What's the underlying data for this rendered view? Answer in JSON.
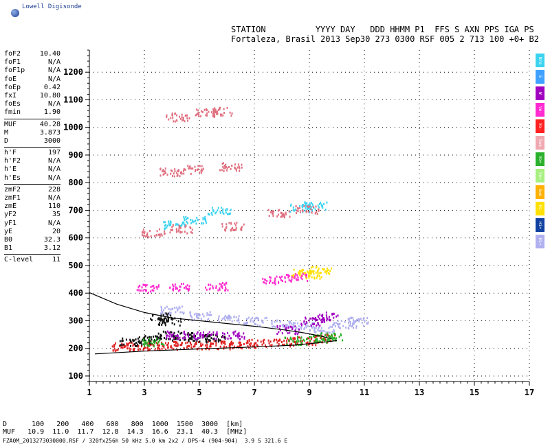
{
  "brand": "Lowell Digisonde",
  "header": {
    "line1": "STATION          YYYY DAY   DDD HHMM P1  FFS S AXN PPS IGA PS",
    "line2": "Fortaleza, Brasil 2013 Sep30 273 0300 RSF 005 2 713 100 +0+ B2"
  },
  "params": [
    {
      "label": "foF2",
      "value": "10.40"
    },
    {
      "label": "foF1",
      "value": "N/A"
    },
    {
      "label": "foF1p",
      "value": "N/A"
    },
    {
      "label": "foE",
      "value": "N/A"
    },
    {
      "label": "foEp",
      "value": "0.42"
    },
    {
      "label": "fxI",
      "value": "10.80"
    },
    {
      "label": "foEs",
      "value": "N/A"
    },
    {
      "label": "fmin",
      "value": "1.90"
    },
    {
      "sep": true
    },
    {
      "label": "MUF",
      "value": "40.28"
    },
    {
      "label": "M",
      "value": "3.873"
    },
    {
      "label": "D",
      "value": "3000"
    },
    {
      "sep": true
    },
    {
      "label": "h'F",
      "value": "197"
    },
    {
      "label": "h'F2",
      "value": "N/A"
    },
    {
      "label": "h'E",
      "value": "N/A"
    },
    {
      "label": "h'Es",
      "value": "N/A"
    },
    {
      "sep": true
    },
    {
      "label": "zmF2",
      "value": "228"
    },
    {
      "label": "zmF1",
      "value": "N/A"
    },
    {
      "label": "zmE",
      "value": "110"
    },
    {
      "label": "yF2",
      "value": "35"
    },
    {
      "label": "yF1",
      "value": "N/A"
    },
    {
      "label": "yE",
      "value": "20"
    },
    {
      "label": "B0",
      "value": "32.3"
    },
    {
      "label": "B1",
      "value": "3.12"
    },
    {
      "sep": true
    },
    {
      "label": "C-level",
      "value": "11"
    }
  ],
  "legend": [
    {
      "label": "Nro",
      "color": "#3bd3f0"
    },
    {
      "label": "E",
      "color": "#3fa0ff"
    },
    {
      "label": "W",
      "color": "#a000c0"
    },
    {
      "label": "Vo-",
      "color": "#ff2ad0"
    },
    {
      "label": "Vo-",
      "color": "#ff2020"
    },
    {
      "label": "Swo",
      "color": "#f0a8b0"
    },
    {
      "label": "Vo+",
      "color": "#2ab02a"
    },
    {
      "label": "Vo+",
      "color": "#a8f080"
    },
    {
      "label": "Swe",
      "color": "#ffb000"
    },
    {
      "label": "Hi-",
      "color": "#ffe000"
    },
    {
      "label": "Hi+",
      "color": "#1040a0"
    },
    {
      "label": "Hi+",
      "color": "#b0b0f0"
    }
  ],
  "chart_data": {
    "type": "scatter",
    "title": "",
    "xlabel": "",
    "ylabel": "",
    "xlim": [
      1,
      17
    ],
    "ylim": [
      80,
      1280
    ],
    "xticks": [
      1,
      3,
      5,
      7,
      9,
      11,
      13,
      15,
      17
    ],
    "yticks": [
      100,
      200,
      300,
      400,
      500,
      600,
      700,
      800,
      900,
      1000,
      1100,
      1200
    ],
    "grid": true,
    "series": [
      {
        "color": "#e02020",
        "points": [
          [
            2.2,
            208
          ],
          [
            2.8,
            210
          ],
          [
            3.5,
            212
          ],
          [
            4.2,
            213
          ],
          [
            5.0,
            214
          ],
          [
            5.8,
            215
          ],
          [
            6.5,
            217
          ],
          [
            7.2,
            220
          ],
          [
            8.0,
            225
          ],
          [
            8.8,
            230
          ],
          [
            9.5,
            238
          ]
        ]
      },
      {
        "color": "#111111",
        "points": [
          [
            2.5,
            225
          ],
          [
            3.2,
            235
          ],
          [
            3.8,
            250
          ],
          [
            4.4,
            245
          ],
          [
            5.0,
            240
          ],
          [
            5.5,
            238
          ],
          [
            3.6,
            315
          ],
          [
            3.9,
            300
          ]
        ]
      },
      {
        "color": "#b0b0f0",
        "points": [
          [
            4.0,
            340
          ],
          [
            5.0,
            320
          ],
          [
            6.0,
            310
          ],
          [
            7.0,
            300
          ],
          [
            8.0,
            290
          ],
          [
            8.8,
            282
          ],
          [
            9.5,
            275
          ],
          [
            10.3,
            290
          ],
          [
            10.8,
            300
          ]
        ]
      },
      {
        "color": "#a000c0",
        "points": [
          [
            4.2,
            250
          ],
          [
            5.2,
            248
          ],
          [
            6.2,
            250
          ],
          [
            8.2,
            270
          ],
          [
            9.1,
            300
          ],
          [
            9.6,
            320
          ]
        ]
      },
      {
        "color": "#2ab02a",
        "points": [
          [
            3.3,
            225
          ],
          [
            8.5,
            230
          ],
          [
            9.3,
            238
          ],
          [
            9.8,
            245
          ]
        ]
      },
      {
        "color": "#ffe000",
        "points": [
          [
            8.7,
            475
          ],
          [
            9.0,
            470
          ],
          [
            9.4,
            485
          ]
        ]
      },
      {
        "color": "#ff2ad0",
        "points": [
          [
            3.1,
            420
          ],
          [
            4.3,
            425
          ],
          [
            5.6,
            428
          ],
          [
            7.7,
            450
          ],
          [
            8.5,
            460
          ]
        ]
      },
      {
        "color": "#3bd3f0",
        "points": [
          [
            4.1,
            650
          ],
          [
            4.8,
            665
          ],
          [
            5.7,
            700
          ],
          [
            8.7,
            710
          ],
          [
            9.2,
            720
          ]
        ]
      },
      {
        "color": "#e07080",
        "points": [
          [
            3.3,
            620
          ],
          [
            4.3,
            635
          ],
          [
            6.2,
            645
          ],
          [
            7.9,
            690
          ],
          [
            8.9,
            705
          ],
          [
            3.9,
            840
          ],
          [
            4.7,
            850
          ],
          [
            6.1,
            860
          ],
          [
            4.2,
            1040
          ],
          [
            5.2,
            1055
          ],
          [
            5.9,
            1060
          ]
        ]
      }
    ],
    "curves": [
      {
        "name": "",
        "points": [
          [
            1.0,
            402
          ],
          [
            2.0,
            360
          ],
          [
            3.0,
            330
          ],
          [
            4.0,
            310
          ],
          [
            5.0,
            300
          ],
          [
            6.0,
            290
          ],
          [
            7.0,
            280
          ],
          [
            8.0,
            268
          ],
          [
            8.7,
            258
          ],
          [
            9.4,
            245
          ],
          [
            9.8,
            235
          ]
        ]
      },
      {
        "name": "",
        "points": [
          [
            1.2,
            180
          ],
          [
            3.0,
            190
          ],
          [
            5.0,
            198
          ],
          [
            7.0,
            205
          ],
          [
            8.5,
            212
          ],
          [
            9.5,
            222
          ],
          [
            10.0,
            228
          ]
        ]
      }
    ]
  },
  "distance_table": {
    "d_label": "D",
    "d_values": [
      "100",
      "200",
      "400",
      "600",
      "800",
      "1000",
      "1500",
      "3000"
    ],
    "d_unit": "[km]",
    "muf_label": "MUF",
    "muf_values": [
      "10.9",
      "11.0",
      "11.7",
      "12.8",
      "14.3",
      "16.6",
      "23.1",
      "40.3"
    ],
    "muf_unit": "[MHz]"
  },
  "footer": "FZA0M_2013273030000.RSF / 320fx256h 50 kHz 5.0 km 2x2 / DPS-4 (904-904)  3.9 S 321.6 E"
}
